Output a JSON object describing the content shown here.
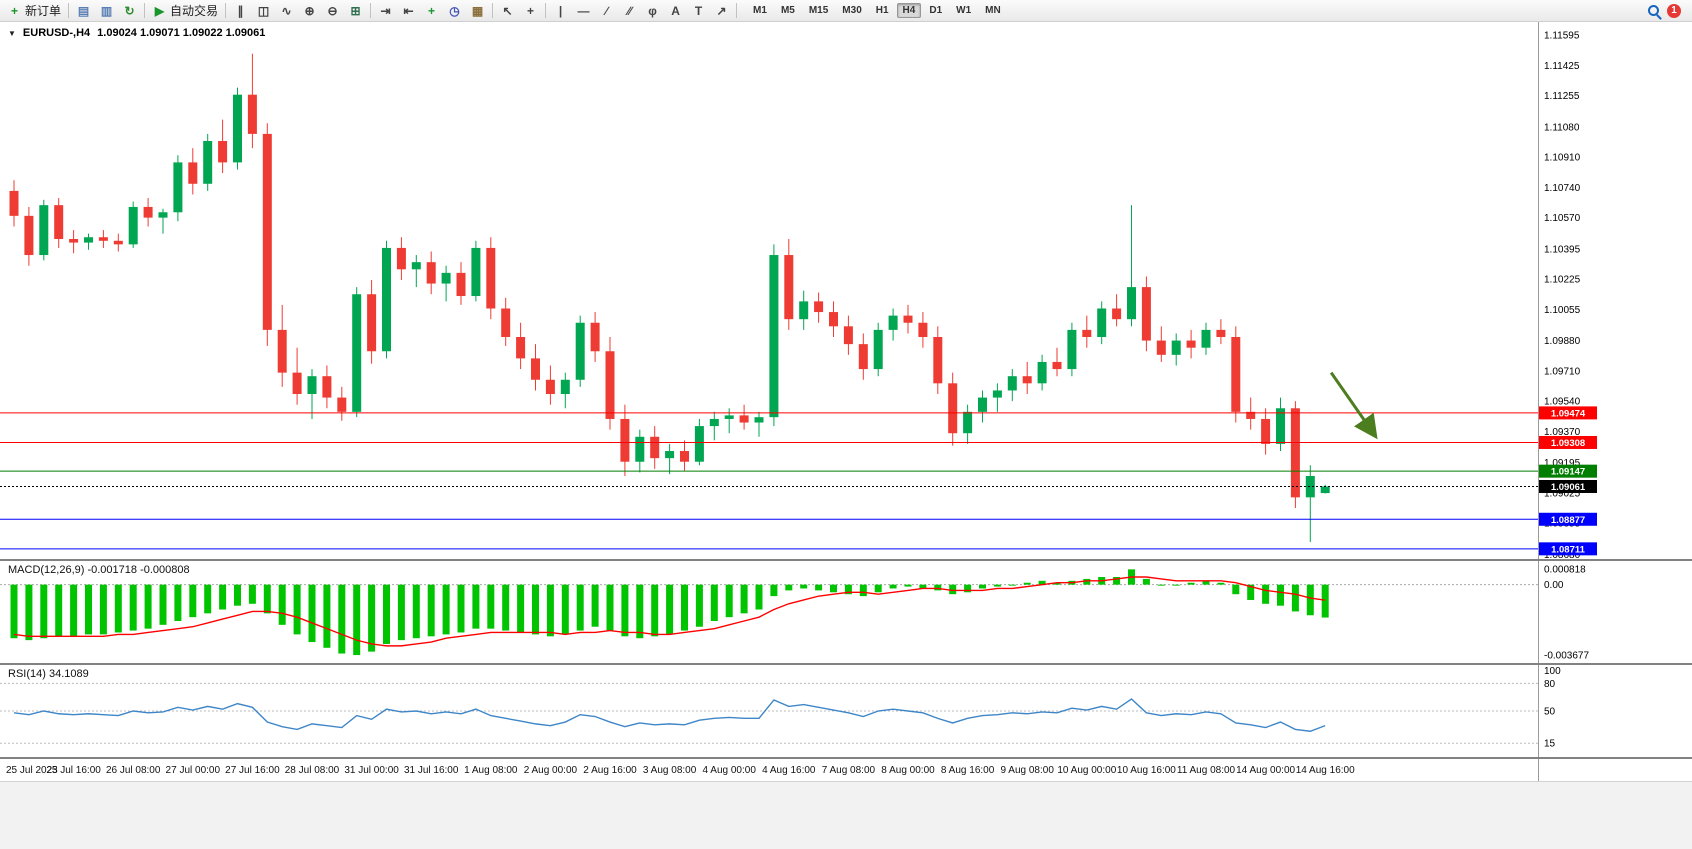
{
  "toolbar": {
    "notification_count": "1",
    "items": [
      {
        "name": "new-order-button",
        "icon": "new-order-icon",
        "glyph": "+",
        "color": "#18962c",
        "label": "新订单"
      },
      {
        "name": "separator"
      },
      {
        "name": "charts-bar-button",
        "icon": "chart-profiles-icon",
        "glyph": "▤",
        "color": "#5a7fb5"
      },
      {
        "name": "profiles-button",
        "icon": "profiles-icon",
        "glyph": "▥",
        "color": "#5a7fb5"
      },
      {
        "name": "refresh-button",
        "icon": "refresh-icon",
        "glyph": "↻",
        "color": "#2e8b2e"
      },
      {
        "name": "separator"
      },
      {
        "name": "autotrade-button",
        "icon": "autotrade-icon",
        "glyph": "▶",
        "color": "#18962c",
        "label": "自动交易"
      },
      {
        "name": "separator"
      },
      {
        "name": "chart-bars-button",
        "icon": "ohlc-bars-icon",
        "glyph": "∥",
        "color": "#444444"
      },
      {
        "name": "chart-candles-button",
        "icon": "candlestick-icon",
        "glyph": "◫",
        "color": "#444444"
      },
      {
        "name": "chart-line-button",
        "icon": "line-chart-icon",
        "glyph": "∿",
        "color": "#444444"
      },
      {
        "name": "zoom-in-button",
        "icon": "zoom-in-icon",
        "glyph": "⊕",
        "color": "#444444"
      },
      {
        "name": "zoom-out-button",
        "icon": "zoom-out-icon",
        "glyph": "⊖",
        "color": "#444444"
      },
      {
        "name": "tile-windows-button",
        "icon": "tile-windows-icon",
        "glyph": "⊞",
        "color": "#2f6f4f"
      },
      {
        "name": "separator"
      },
      {
        "name": "auto-scroll-button",
        "icon": "auto-scroll-icon",
        "glyph": "⇥",
        "color": "#444444"
      },
      {
        "name": "chart-shift-button",
        "icon": "chart-shift-icon",
        "glyph": "⇤",
        "color": "#444444"
      },
      {
        "name": "indicators-button",
        "icon": "indicators-icon",
        "glyph": "+",
        "color": "#18962c"
      },
      {
        "name": "periods-button",
        "icon": "periods-icon",
        "glyph": "◷",
        "color": "#3f51b5"
      },
      {
        "name": "templates-button",
        "icon": "templates-icon",
        "glyph": "▦",
        "color": "#8a6d3b"
      },
      {
        "name": "separator"
      },
      {
        "name": "cursor-button",
        "icon": "cursor-icon",
        "glyph": "↖",
        "color": "#444444"
      },
      {
        "name": "crosshair-button",
        "icon": "crosshair-icon",
        "glyph": "+",
        "color": "#444444"
      },
      {
        "name": "separator"
      },
      {
        "name": "vertical-line-button",
        "icon": "vertical-line-icon",
        "glyph": "|",
        "color": "#444444"
      },
      {
        "name": "horizontal-line-button",
        "icon": "horizontal-line-icon",
        "glyph": "—",
        "color": "#444444"
      },
      {
        "name": "trendline-button",
        "icon": "trendline-icon",
        "glyph": "∕",
        "color": "#444444"
      },
      {
        "name": "channel-button",
        "icon": "channel-icon",
        "glyph": "∕∕",
        "color": "#444444"
      },
      {
        "name": "fibonacci-button",
        "icon": "fibonacci-icon",
        "glyph": "φ",
        "color": "#444444"
      },
      {
        "name": "text-button",
        "icon": "text-icon",
        "glyph": "A",
        "color": "#444444"
      },
      {
        "name": "label-button",
        "icon": "label-icon",
        "glyph": "T",
        "color": "#444444"
      },
      {
        "name": "arrows-button",
        "icon": "arrows-icon",
        "glyph": "↗",
        "color": "#444444"
      },
      {
        "name": "separator"
      }
    ],
    "timeframes": {
      "items": [
        "M1",
        "M5",
        "M15",
        "M30",
        "H1",
        "H4",
        "D1",
        "W1",
        "MN"
      ],
      "active": "H4"
    }
  },
  "chart": {
    "expand_marker": "▼",
    "symbol_label": "EURUSD-,H4",
    "ohlc_label": "1.09024 1.09071 1.09022 1.09061",
    "colors": {
      "up": "#00A651",
      "down": "#EE3B33",
      "macd_hist": "#00C400",
      "macd_signal": "#FF0000",
      "rsi": "#3E86C8",
      "axis_text": "#000000",
      "arrow": "#4C7D1E",
      "level_red": "#FF0000",
      "level_green": "#007F00",
      "level_blue": "#0000FF",
      "current_price_tag": "#000000"
    },
    "price_axis": {
      "min": 1.08654,
      "max": 1.11668,
      "labels": [
        "1.11595",
        "1.11425",
        "1.11255",
        "1.11080",
        "1.10910",
        "1.10740",
        "1.10570",
        "1.10395",
        "1.10225",
        "1.10055",
        "1.09880",
        "1.09710",
        "1.09540",
        "1.09370",
        "1.09195",
        "1.09025",
        "1.08855",
        "1.08680"
      ]
    },
    "levels": [
      {
        "name": "resistance-line-1",
        "label": "1.09474",
        "value": 1.09474,
        "color": "#FF0000"
      },
      {
        "name": "resistance-line-2",
        "label": "1.09308",
        "value": 1.09308,
        "color": "#FF0000"
      },
      {
        "name": "support-line-green",
        "label": "1.09147",
        "value": 1.09147,
        "color": "#007F00"
      },
      {
        "name": "current-price-line",
        "label": "1.09061",
        "value": 1.09061,
        "color": "#000000",
        "dash": "2,2"
      },
      {
        "name": "support-line-blue-1",
        "label": "1.08877",
        "value": 1.08877,
        "color": "#0000FF"
      },
      {
        "name": "support-line-blue-2",
        "label": "1.08711",
        "value": 1.08711,
        "color": "#0000FF"
      }
    ],
    "annotation_arrow": {
      "from_index": 88.4,
      "from_price": 1.097,
      "to_index": 91.4,
      "to_price": 1.0934,
      "color": "#4C7D1E"
    }
  },
  "chart_data": {
    "type": "candlestick",
    "symbol": "EURUSD-",
    "timeframe": "H4",
    "candles": [
      [
        1.1072,
        1.1078,
        1.1052,
        1.1058
      ],
      [
        1.1058,
        1.1063,
        1.103,
        1.1036
      ],
      [
        1.1036,
        1.1067,
        1.1033,
        1.1064
      ],
      [
        1.1064,
        1.1068,
        1.104,
        1.1045
      ],
      [
        1.1045,
        1.105,
        1.1037,
        1.1043
      ],
      [
        1.1043,
        1.1048,
        1.1039,
        1.1046
      ],
      [
        1.1046,
        1.105,
        1.104,
        1.1044
      ],
      [
        1.1044,
        1.1048,
        1.1038,
        1.1042
      ],
      [
        1.1042,
        1.1066,
        1.104,
        1.1063
      ],
      [
        1.1063,
        1.1068,
        1.1052,
        1.1057
      ],
      [
        1.1057,
        1.1062,
        1.1048,
        1.106
      ],
      [
        1.106,
        1.1092,
        1.1055,
        1.1088
      ],
      [
        1.1088,
        1.1096,
        1.107,
        1.1076
      ],
      [
        1.1076,
        1.1104,
        1.1072,
        1.11
      ],
      [
        1.11,
        1.1112,
        1.1082,
        1.1088
      ],
      [
        1.1088,
        1.113,
        1.1084,
        1.1126
      ],
      [
        1.1126,
        1.1149,
        1.1096,
        1.1104
      ],
      [
        1.1104,
        1.111,
        1.0985,
        1.0994
      ],
      [
        1.0994,
        1.1008,
        1.0962,
        1.097
      ],
      [
        1.097,
        1.0984,
        1.0952,
        1.0958
      ],
      [
        1.0958,
        1.0972,
        1.0944,
        1.0968
      ],
      [
        1.0968,
        1.0974,
        1.095,
        1.0956
      ],
      [
        1.0956,
        1.0962,
        1.0943,
        1.0948
      ],
      [
        1.0948,
        1.1018,
        1.0945,
        1.1014
      ],
      [
        1.1014,
        1.1022,
        1.0975,
        1.0982
      ],
      [
        1.0982,
        1.1044,
        1.0978,
        1.104
      ],
      [
        1.104,
        1.1046,
        1.1022,
        1.1028
      ],
      [
        1.1028,
        1.1036,
        1.1018,
        1.1032
      ],
      [
        1.1032,
        1.1038,
        1.1014,
        1.102
      ],
      [
        1.102,
        1.103,
        1.101,
        1.1026
      ],
      [
        1.1026,
        1.1032,
        1.1008,
        1.1013
      ],
      [
        1.1013,
        1.1044,
        1.101,
        1.104
      ],
      [
        1.104,
        1.1046,
        1.1,
        1.1006
      ],
      [
        1.1006,
        1.1012,
        1.0985,
        1.099
      ],
      [
        1.099,
        1.0998,
        1.0972,
        1.0978
      ],
      [
        1.0978,
        1.0986,
        1.096,
        1.0966
      ],
      [
        1.0966,
        1.0974,
        1.0952,
        1.0958
      ],
      [
        1.0958,
        1.097,
        1.095,
        1.0966
      ],
      [
        1.0966,
        1.1002,
        1.0962,
        1.0998
      ],
      [
        1.0998,
        1.1004,
        1.0976,
        1.0982
      ],
      [
        1.0982,
        1.099,
        1.0938,
        1.0944
      ],
      [
        1.0944,
        1.0952,
        1.0912,
        1.092
      ],
      [
        1.092,
        1.0938,
        1.0914,
        1.0934
      ],
      [
        1.0934,
        1.094,
        1.0916,
        1.0922
      ],
      [
        1.0922,
        1.093,
        1.0913,
        1.0926
      ],
      [
        1.0926,
        1.0932,
        1.0915,
        1.092
      ],
      [
        1.092,
        1.0944,
        1.0918,
        1.094
      ],
      [
        1.094,
        1.0948,
        1.0932,
        1.0944
      ],
      [
        1.0944,
        1.095,
        1.0936,
        1.0946
      ],
      [
        1.0946,
        1.0952,
        1.0938,
        1.0942
      ],
      [
        1.0942,
        1.0948,
        1.0934,
        1.0945
      ],
      [
        1.0945,
        1.1042,
        1.094,
        1.1036
      ],
      [
        1.1036,
        1.1045,
        1.0994,
        1.1
      ],
      [
        1.1,
        1.1016,
        1.0994,
        1.101
      ],
      [
        1.101,
        1.1015,
        1.0998,
        1.1004
      ],
      [
        1.1004,
        1.101,
        1.099,
        1.0996
      ],
      [
        1.0996,
        1.1002,
        1.098,
        1.0986
      ],
      [
        1.0986,
        1.0992,
        1.0966,
        1.0972
      ],
      [
        1.0972,
        1.0998,
        1.0968,
        1.0994
      ],
      [
        1.0994,
        1.1006,
        1.0988,
        1.1002
      ],
      [
        1.1002,
        1.1008,
        1.0992,
        1.0998
      ],
      [
        1.0998,
        1.1004,
        1.0984,
        1.099
      ],
      [
        1.099,
        1.0996,
        1.0958,
        1.0964
      ],
      [
        1.0964,
        1.097,
        1.0929,
        1.0936
      ],
      [
        1.0936,
        1.0952,
        1.093,
        1.0948
      ],
      [
        1.0948,
        1.096,
        1.0942,
        1.0956
      ],
      [
        1.0956,
        1.0964,
        1.0948,
        1.096
      ],
      [
        1.096,
        1.0972,
        1.0954,
        1.0968
      ],
      [
        1.0968,
        1.0976,
        1.0958,
        1.0964
      ],
      [
        1.0964,
        1.098,
        1.096,
        1.0976
      ],
      [
        1.0976,
        1.0984,
        1.0968,
        1.0972
      ],
      [
        1.0972,
        1.0998,
        1.0968,
        1.0994
      ],
      [
        1.0994,
        1.1002,
        1.0984,
        1.099
      ],
      [
        1.099,
        1.101,
        1.0986,
        1.1006
      ],
      [
        1.1006,
        1.1014,
        1.0996,
        1.1
      ],
      [
        1.1,
        1.1064,
        1.0996,
        1.1018
      ],
      [
        1.1018,
        1.1024,
        1.0982,
        1.0988
      ],
      [
        1.0988,
        1.0996,
        1.0976,
        1.098
      ],
      [
        1.098,
        1.0992,
        1.0974,
        1.0988
      ],
      [
        1.0988,
        1.0994,
        1.0978,
        1.0984
      ],
      [
        1.0984,
        1.0998,
        1.098,
        1.0994
      ],
      [
        1.0994,
        1.1,
        1.0986,
        1.099
      ],
      [
        1.099,
        1.0996,
        1.0942,
        1.0948
      ],
      [
        1.0948,
        1.0956,
        1.0938,
        1.0944
      ],
      [
        1.0944,
        1.095,
        1.0924,
        1.093
      ],
      [
        1.093,
        1.0956,
        1.0926,
        1.095
      ],
      [
        1.095,
        1.0954,
        1.0894,
        1.09
      ],
      [
        1.09,
        1.0918,
        1.0875,
        1.0912
      ],
      [
        1.09024,
        1.09071,
        1.09022,
        1.09061
      ]
    ],
    "time_labels": [
      "25 Jul 2023",
      "25 Jul 16:00",
      "26 Jul 08:00",
      "27 Jul 00:00",
      "27 Jul 16:00",
      "28 Jul 08:00",
      "31 Jul 00:00",
      "31 Jul 16:00",
      "1 Aug 08:00",
      "2 Aug 00:00",
      "2 Aug 16:00",
      "3 Aug 08:00",
      "4 Aug 00:00",
      "4 Aug 16:00",
      "7 Aug 08:00",
      "8 Aug 00:00",
      "8 Aug 16:00",
      "9 Aug 08:00",
      "10 Aug 00:00",
      "10 Aug 16:00",
      "11 Aug 08:00",
      "14 Aug 00:00",
      "14 Aug 16:00"
    ],
    "label_every": 4,
    "macd": {
      "label": "MACD(12,26,9) -0.001718 -0.000808",
      "axis": [
        {
          "label": "0.000818",
          "value": 0.000818
        },
        {
          "label": "0.00",
          "value": 0
        },
        {
          "label": "-0.003677",
          "value": -0.003677
        }
      ],
      "histogram": [
        -0.0028,
        -0.0029,
        -0.0028,
        -0.0027,
        -0.0027,
        -0.0026,
        -0.0026,
        -0.0025,
        -0.0024,
        -0.0023,
        -0.0021,
        -0.0019,
        -0.0017,
        -0.0015,
        -0.0013,
        -0.0011,
        -0.001,
        -0.0015,
        -0.0021,
        -0.0026,
        -0.003,
        -0.0033,
        -0.0036,
        -0.00368,
        -0.0035,
        -0.0031,
        -0.0029,
        -0.0028,
        -0.0027,
        -0.0026,
        -0.0025,
        -0.0023,
        -0.0023,
        -0.0024,
        -0.0025,
        -0.0026,
        -0.0027,
        -0.0026,
        -0.0024,
        -0.0022,
        -0.0024,
        -0.0027,
        -0.0028,
        -0.0027,
        -0.0026,
        -0.0024,
        -0.0022,
        -0.0019,
        -0.0017,
        -0.0015,
        -0.0013,
        -0.0006,
        -0.0003,
        -0.0002,
        -0.0003,
        -0.0004,
        -0.0005,
        -0.0006,
        -0.0004,
        -0.0002,
        -0.0001,
        -0.0002,
        -0.0003,
        -0.0005,
        -0.0004,
        -0.0002,
        -0.0001,
        0.0,
        0.0001,
        0.0002,
        0.0001,
        0.0002,
        0.0003,
        0.0004,
        0.0004,
        0.0008,
        0.0003,
        0.0,
        0.0,
        0.0001,
        0.0002,
        0.0001,
        -0.0005,
        -0.0008,
        -0.001,
        -0.0011,
        -0.0014,
        -0.0016,
        -0.00172
      ],
      "signal": [
        -0.0026,
        -0.0027,
        -0.0027,
        -0.0027,
        -0.0027,
        -0.0027,
        -0.0027,
        -0.0026,
        -0.0026,
        -0.0025,
        -0.0024,
        -0.0023,
        -0.0022,
        -0.002,
        -0.0018,
        -0.0016,
        -0.0014,
        -0.0014,
        -0.0015,
        -0.0017,
        -0.002,
        -0.0023,
        -0.0026,
        -0.0029,
        -0.0031,
        -0.0032,
        -0.0032,
        -0.0031,
        -0.003,
        -0.0028,
        -0.0027,
        -0.0026,
        -0.0025,
        -0.0025,
        -0.0025,
        -0.0025,
        -0.0025,
        -0.0026,
        -0.0025,
        -0.0025,
        -0.0024,
        -0.0025,
        -0.0025,
        -0.0026,
        -0.0026,
        -0.0025,
        -0.0024,
        -0.0023,
        -0.0021,
        -0.0019,
        -0.0017,
        -0.0013,
        -0.001,
        -0.0008,
        -0.0006,
        -0.0005,
        -0.0004,
        -0.0004,
        -0.0005,
        -0.0004,
        -0.0003,
        -0.0002,
        -0.0002,
        -0.0003,
        -0.0003,
        -0.0003,
        -0.0002,
        -0.0002,
        -0.0001,
        0.0,
        0.0001,
        0.0001,
        0.0002,
        0.0002,
        0.0003,
        0.0004,
        0.0004,
        0.0003,
        0.0002,
        0.0002,
        0.0002,
        0.0002,
        0.0001,
        -0.0001,
        -0.0003,
        -0.0004,
        -0.0005,
        -0.0007,
        -0.00081
      ]
    },
    "rsi": {
      "label": "RSI(14) 34.1089",
      "levels": [
        100,
        80,
        50,
        15
      ],
      "values": [
        48,
        46,
        50,
        47,
        46,
        47,
        46,
        45,
        50,
        48,
        49,
        54,
        51,
        55,
        52,
        58,
        54,
        38,
        33,
        30,
        36,
        34,
        32,
        45,
        41,
        52,
        49,
        50,
        47,
        49,
        47,
        52,
        45,
        42,
        39,
        36,
        34,
        38,
        46,
        44,
        38,
        33,
        37,
        35,
        36,
        35,
        40,
        42,
        43,
        42,
        42,
        62,
        55,
        57,
        54,
        51,
        48,
        44,
        50,
        52,
        50,
        48,
        42,
        37,
        42,
        45,
        46,
        48,
        47,
        49,
        48,
        53,
        51,
        55,
        52,
        63,
        48,
        45,
        47,
        46,
        49,
        47,
        37,
        35,
        32,
        38,
        30,
        28,
        34.11
      ]
    }
  }
}
